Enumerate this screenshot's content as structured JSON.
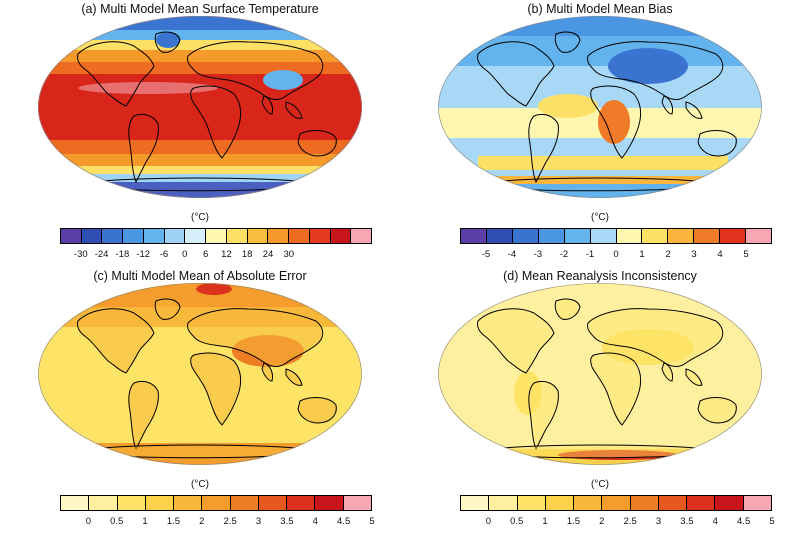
{
  "panels": [
    {
      "title": "(a) Multi Model Mean Surface Temperature",
      "unit": "(°C)",
      "colorbar": {
        "colors": [
          "#5b3fa5",
          "#2f4fb5",
          "#3b74d0",
          "#4a96e2",
          "#63b4ee",
          "#9ed3f5",
          "#d8eefb",
          "#fff7b0",
          "#fde066",
          "#fbbf3f",
          "#f59a2b",
          "#ee6b22",
          "#e23a1d",
          "#c8141b",
          "#f7a8b2"
        ],
        "labels": [
          "-30",
          "-24",
          "-18",
          "-12",
          "-6",
          "0",
          "6",
          "12",
          "18",
          "24",
          "30"
        ]
      }
    },
    {
      "title": "(b) Multi Model Mean Bias",
      "unit": "(°C)",
      "colorbar": {
        "colors": [
          "#5b3fa5",
          "#2f4fb5",
          "#3b74d0",
          "#4a96e2",
          "#63b4ee",
          "#a8d8f5",
          "#fff7b0",
          "#fde066",
          "#fbb43c",
          "#ef7a27",
          "#e0321c",
          "#f7a8b2"
        ],
        "labels": [
          "-5",
          "-4",
          "-3",
          "-2",
          "-1",
          "0",
          "1",
          "2",
          "3",
          "4",
          "5"
        ]
      }
    },
    {
      "title": "(c) Multi Model Mean of Absolute Error",
      "unit": "(°C)",
      "colorbar": {
        "colors": [
          "#fff7c8",
          "#fff0a0",
          "#fde466",
          "#fbd24a",
          "#f8b83a",
          "#f49c2c",
          "#ee7d24",
          "#e6581e",
          "#da321b",
          "#c8141b",
          "#f7a8b2"
        ],
        "labels": [
          "0",
          "0.5",
          "1",
          "1.5",
          "2",
          "2.5",
          "3",
          "3.5",
          "4",
          "4.5",
          "5"
        ]
      }
    },
    {
      "title": "(d) Mean Reanalysis Inconsistency",
      "unit": "(°C)",
      "colorbar": {
        "colors": [
          "#fff7c8",
          "#fff0a0",
          "#fde466",
          "#fbd24a",
          "#f8b83a",
          "#f49c2c",
          "#ee7d24",
          "#e6581e",
          "#da321b",
          "#c8141b",
          "#f7a8b2"
        ],
        "labels": [
          "0",
          "0.5",
          "1",
          "1.5",
          "2",
          "2.5",
          "3",
          "3.5",
          "4",
          "4.5",
          "5"
        ]
      }
    }
  ]
}
